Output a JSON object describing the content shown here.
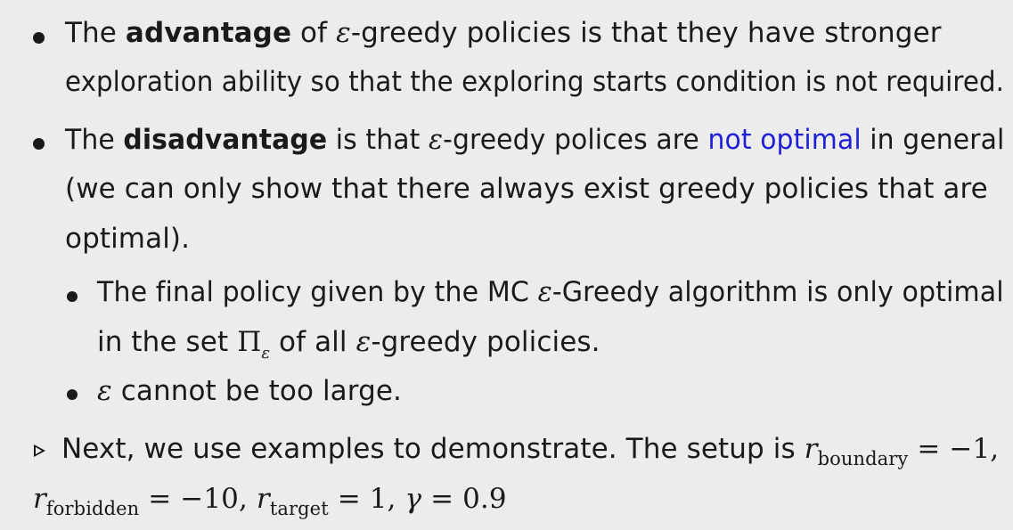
{
  "bullet1": {
    "line1": {
      "pre": "The ",
      "bold": "advantage",
      "mid": " of ",
      "eps": "ε",
      "post": "-greedy policies is that they have stronger"
    },
    "line2": "exploration ability so that the exploring starts condition is not required."
  },
  "bullet2": {
    "line1": {
      "pre": "The ",
      "bold": "disadvantage",
      "mid": " is that ",
      "eps": "ε",
      "post1": "-greedy polices are ",
      "highlight": "not optimal",
      "post2": " in general"
    },
    "line2": "(we can only show that there always exist greedy policies that are",
    "line3": "optimal).",
    "highlight_color": "#1f1fd6"
  },
  "sub1": {
    "line1": {
      "pre": "The final policy given by the MC ",
      "eps": "ε",
      "post": "-Greedy algorithm is only optimal"
    },
    "line2": {
      "pre": "in the set ",
      "pi": "Π",
      "pi_sub": "ε",
      "mid": " of all ",
      "eps": "ε",
      "post": "-greedy policies."
    }
  },
  "sub2": {
    "eps": "ε",
    "text": " cannot be too large."
  },
  "next": {
    "line1": {
      "pre": "Next, we use examples to demonstrate. The setup is ",
      "r": "r",
      "sub": "boundary",
      "eq": " = −1,"
    },
    "line2": {
      "r1": "r",
      "sub1": "forbidden",
      "eq1": " = −10, ",
      "r2": "r",
      "sub2": "target",
      "eq2": " = 1, ",
      "gamma": "γ",
      "eq3": " = 0.9"
    }
  }
}
